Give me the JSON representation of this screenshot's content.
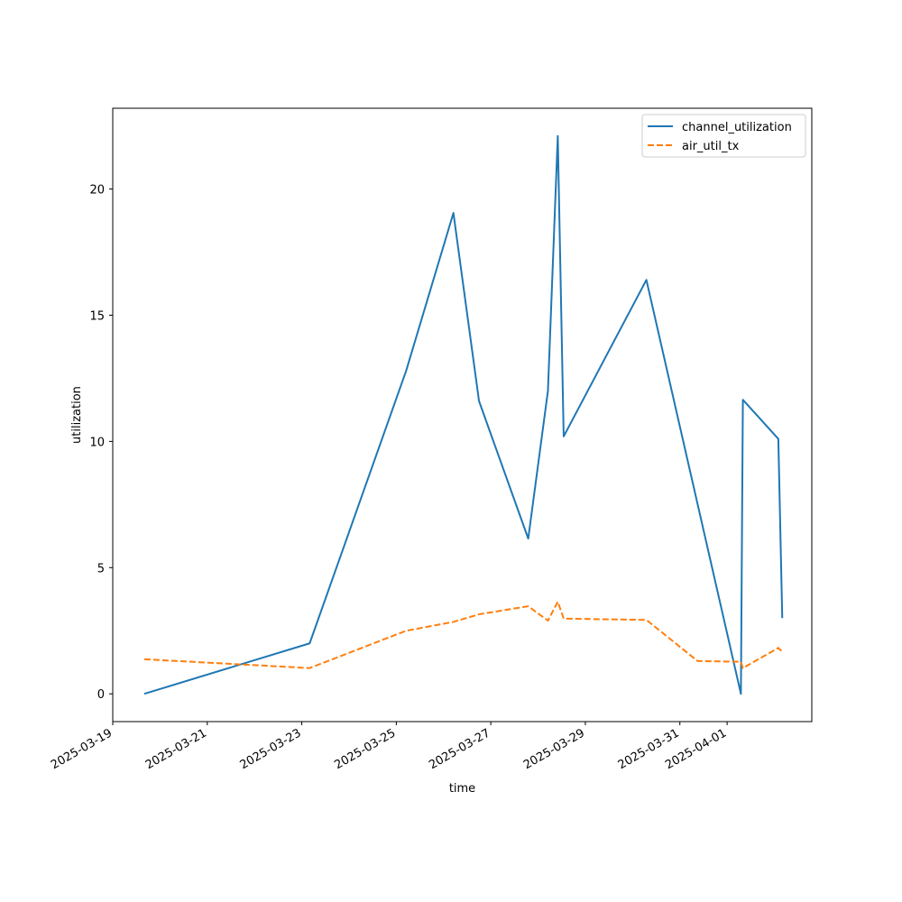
{
  "chart_data": {
    "type": "line",
    "title": "",
    "xlabel": "time",
    "ylabel": "utilization",
    "x_ticks": [
      "2025-03-19",
      "2025-03-21",
      "2025-03-23",
      "2025-03-25",
      "2025-03-27",
      "2025-03-29",
      "2025-03-31",
      "2025-04-01"
    ],
    "y_ticks": [
      0,
      5,
      10,
      15,
      20
    ],
    "xlim": [
      "2025-03-19T00:00",
      "2025-04-02T19:00"
    ],
    "ylim": [
      -1.1,
      23.2
    ],
    "grid": false,
    "legend_position": "top-right",
    "series": [
      {
        "name": "channel_utilization",
        "color": "#1f77b4",
        "dash": "solid",
        "points": [
          {
            "x": "2025-03-19T16:00",
            "y": 0.0
          },
          {
            "x": "2025-03-23T04:00",
            "y": 2.0
          },
          {
            "x": "2025-03-25T05:00",
            "y": 12.8
          },
          {
            "x": "2025-03-26T05:00",
            "y": 19.05
          },
          {
            "x": "2025-03-26T18:00",
            "y": 11.6
          },
          {
            "x": "2025-03-27T19:00",
            "y": 6.15
          },
          {
            "x": "2025-03-28T05:00",
            "y": 12.0
          },
          {
            "x": "2025-03-28T10:00",
            "y": 22.1
          },
          {
            "x": "2025-03-28T13:00",
            "y": 10.2
          },
          {
            "x": "2025-03-30T07:00",
            "y": 16.4
          },
          {
            "x": "2025-04-01T07:00",
            "y": 0.0
          },
          {
            "x": "2025-04-01T08:00",
            "y": 11.65
          },
          {
            "x": "2025-04-02T02:00",
            "y": 10.1
          },
          {
            "x": "2025-04-02T04:00",
            "y": 3.0
          }
        ]
      },
      {
        "name": "air_util_tx",
        "color": "#ff7f0e",
        "dash": "dashed",
        "points": [
          {
            "x": "2025-03-19T16:00",
            "y": 1.37
          },
          {
            "x": "2025-03-23T04:00",
            "y": 1.02
          },
          {
            "x": "2025-03-25T05:00",
            "y": 2.5
          },
          {
            "x": "2025-03-26T05:00",
            "y": 2.85
          },
          {
            "x": "2025-03-26T18:00",
            "y": 3.15
          },
          {
            "x": "2025-03-27T19:00",
            "y": 3.47
          },
          {
            "x": "2025-03-28T05:00",
            "y": 2.9
          },
          {
            "x": "2025-03-28T10:00",
            "y": 3.65
          },
          {
            "x": "2025-03-28T13:00",
            "y": 2.98
          },
          {
            "x": "2025-03-30T07:00",
            "y": 2.93
          },
          {
            "x": "2025-03-31T09:00",
            "y": 1.3
          },
          {
            "x": "2025-04-01T07:00",
            "y": 1.27
          },
          {
            "x": "2025-04-01T08:00",
            "y": 1.02
          },
          {
            "x": "2025-04-02T02:00",
            "y": 1.82
          },
          {
            "x": "2025-04-02T04:00",
            "y": 1.67
          }
        ]
      }
    ]
  }
}
